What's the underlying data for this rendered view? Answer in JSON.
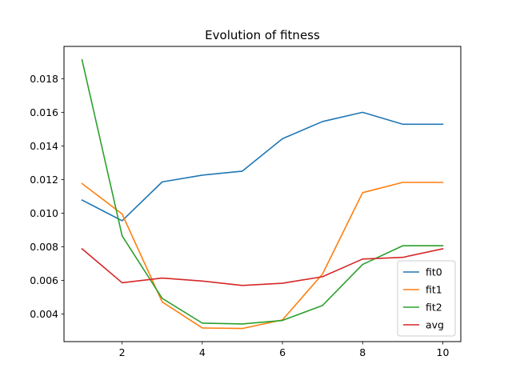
{
  "chart_data": {
    "type": "line",
    "title": "Evolution of fitness",
    "xlabel": "",
    "ylabel": "",
    "x": [
      1,
      2,
      3,
      4,
      5,
      6,
      7,
      8,
      9,
      10
    ],
    "xlim": [
      0.55,
      10.45
    ],
    "ylim": [
      0.00236,
      0.01992
    ],
    "xticks": [
      2,
      4,
      6,
      8,
      10
    ],
    "xtick_labels": [
      "2",
      "4",
      "6",
      "8",
      "10"
    ],
    "yticks": [
      0.004,
      0.006,
      0.008,
      0.01,
      0.012,
      0.014,
      0.016,
      0.018
    ],
    "ytick_labels": [
      "0.004",
      "0.006",
      "0.008",
      "0.010",
      "0.012",
      "0.014",
      "0.016",
      "0.018"
    ],
    "grid": false,
    "legend_position": "bottom-right",
    "series": [
      {
        "name": "fit0",
        "color": "#1f77b4",
        "values": [
          0.01078,
          0.00955,
          0.01186,
          0.01226,
          0.0125,
          0.01443,
          0.01545,
          0.016,
          0.01529,
          0.01529
        ]
      },
      {
        "name": "fit1",
        "color": "#ff7f0e",
        "values": [
          0.01176,
          0.00995,
          0.00472,
          0.00317,
          0.00314,
          0.00365,
          0.00638,
          0.01122,
          0.01183,
          0.01183
        ]
      },
      {
        "name": "fit2",
        "color": "#2ca02c",
        "values": [
          0.01912,
          0.00865,
          0.00493,
          0.00346,
          0.00341,
          0.00362,
          0.00451,
          0.00695,
          0.00806,
          0.00806
        ]
      },
      {
        "name": "avg",
        "color": "#d62728",
        "values": [
          0.00788,
          0.00586,
          0.00614,
          0.00596,
          0.0057,
          0.00583,
          0.00622,
          0.00727,
          0.00737,
          0.00788
        ]
      }
    ]
  }
}
